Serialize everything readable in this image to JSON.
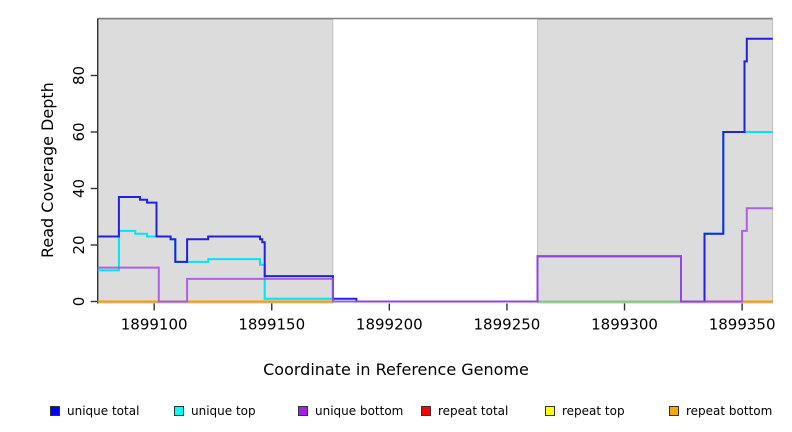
{
  "chart_data": {
    "type": "line",
    "subtype": "step-coverage-plot",
    "title": "",
    "xlabel": "Coordinate in Reference Genome",
    "ylabel": "Read Coverage Depth",
    "xlim": [
      1899076,
      1899363
    ],
    "ylim": [
      0,
      97
    ],
    "x_ticks": [
      1899100,
      1899150,
      1899200,
      1899250,
      1899300,
      1899350
    ],
    "y_ticks": [
      0,
      20,
      40,
      60,
      80
    ],
    "grid": false,
    "background_color": "#ffffff",
    "shaded_region_color": "#dcdcdc",
    "shaded_regions": [
      {
        "from": 1899076,
        "to": 1899176
      },
      {
        "from": 1899263,
        "to": 1899363
      }
    ],
    "series": [
      {
        "name": "repeat top",
        "color": "#ffff00",
        "opacity": 1,
        "points": [
          [
            1899076,
            0
          ],
          [
            1899363,
            0
          ]
        ]
      },
      {
        "name": "repeat total",
        "color": "#e03030",
        "opacity": 1,
        "points": [
          [
            1899076,
            0
          ],
          [
            1899363,
            0
          ]
        ]
      },
      {
        "name": "repeat bottom",
        "color": "#ff9d00",
        "opacity": 1,
        "points": [
          [
            1899076,
            0
          ],
          [
            1899363,
            0
          ]
        ]
      },
      {
        "name": "unique top",
        "color": "#00e5ee",
        "opacity": 1,
        "points": [
          [
            1899076,
            11
          ],
          [
            1899085,
            25
          ],
          [
            1899092,
            24
          ],
          [
            1899097,
            23
          ],
          [
            1899107,
            22
          ],
          [
            1899109,
            14
          ],
          [
            1899123,
            15
          ],
          [
            1899145,
            13
          ],
          [
            1899147,
            1
          ],
          [
            1899176,
            0
          ],
          [
            1899334,
            24
          ],
          [
            1899342,
            60
          ],
          [
            1899363,
            60
          ]
        ]
      },
      {
        "name": "unique total",
        "color": "#2222dd",
        "opacity": 1,
        "points": [
          [
            1899076,
            23
          ],
          [
            1899085,
            37
          ],
          [
            1899094,
            36
          ],
          [
            1899097,
            35
          ],
          [
            1899101,
            23
          ],
          [
            1899107,
            22
          ],
          [
            1899109,
            14
          ],
          [
            1899114,
            22
          ],
          [
            1899123,
            23
          ],
          [
            1899145,
            22
          ],
          [
            1899146,
            21
          ],
          [
            1899147,
            9
          ],
          [
            1899176,
            1
          ],
          [
            1899186,
            0
          ],
          [
            1899263,
            16
          ],
          [
            1899324,
            0
          ],
          [
            1899334,
            24
          ],
          [
            1899342,
            60
          ],
          [
            1899351,
            85
          ],
          [
            1899352,
            93
          ],
          [
            1899363,
            93
          ]
        ]
      },
      {
        "name": "unique bottom",
        "color": "#a64ce0",
        "opacity": 0.85,
        "points": [
          [
            1899076,
            12
          ],
          [
            1899102,
            0
          ],
          [
            1899114,
            8
          ],
          [
            1899176,
            0
          ],
          [
            1899263,
            16
          ],
          [
            1899324,
            0
          ],
          [
            1899350,
            25
          ],
          [
            1899352,
            33
          ],
          [
            1899363,
            33
          ]
        ]
      }
    ],
    "zero_line_color_segments": [
      {
        "color": "#84c884",
        "from": 1899263,
        "to": 1899324
      },
      {
        "color": "#e03050",
        "from": 1899334,
        "to": 1899350
      }
    ],
    "legend": {
      "position": "bottom",
      "entries": [
        {
          "label": "unique total",
          "color": "#0000ff"
        },
        {
          "label": "unique top",
          "color": "#00ffff"
        },
        {
          "label": "unique bottom",
          "color": "#a020f0"
        },
        {
          "label": "repeat total",
          "color": "#ff0000"
        },
        {
          "label": "repeat top",
          "color": "#ffff00"
        },
        {
          "label": "repeat bottom",
          "color": "#ffa500"
        }
      ]
    }
  }
}
